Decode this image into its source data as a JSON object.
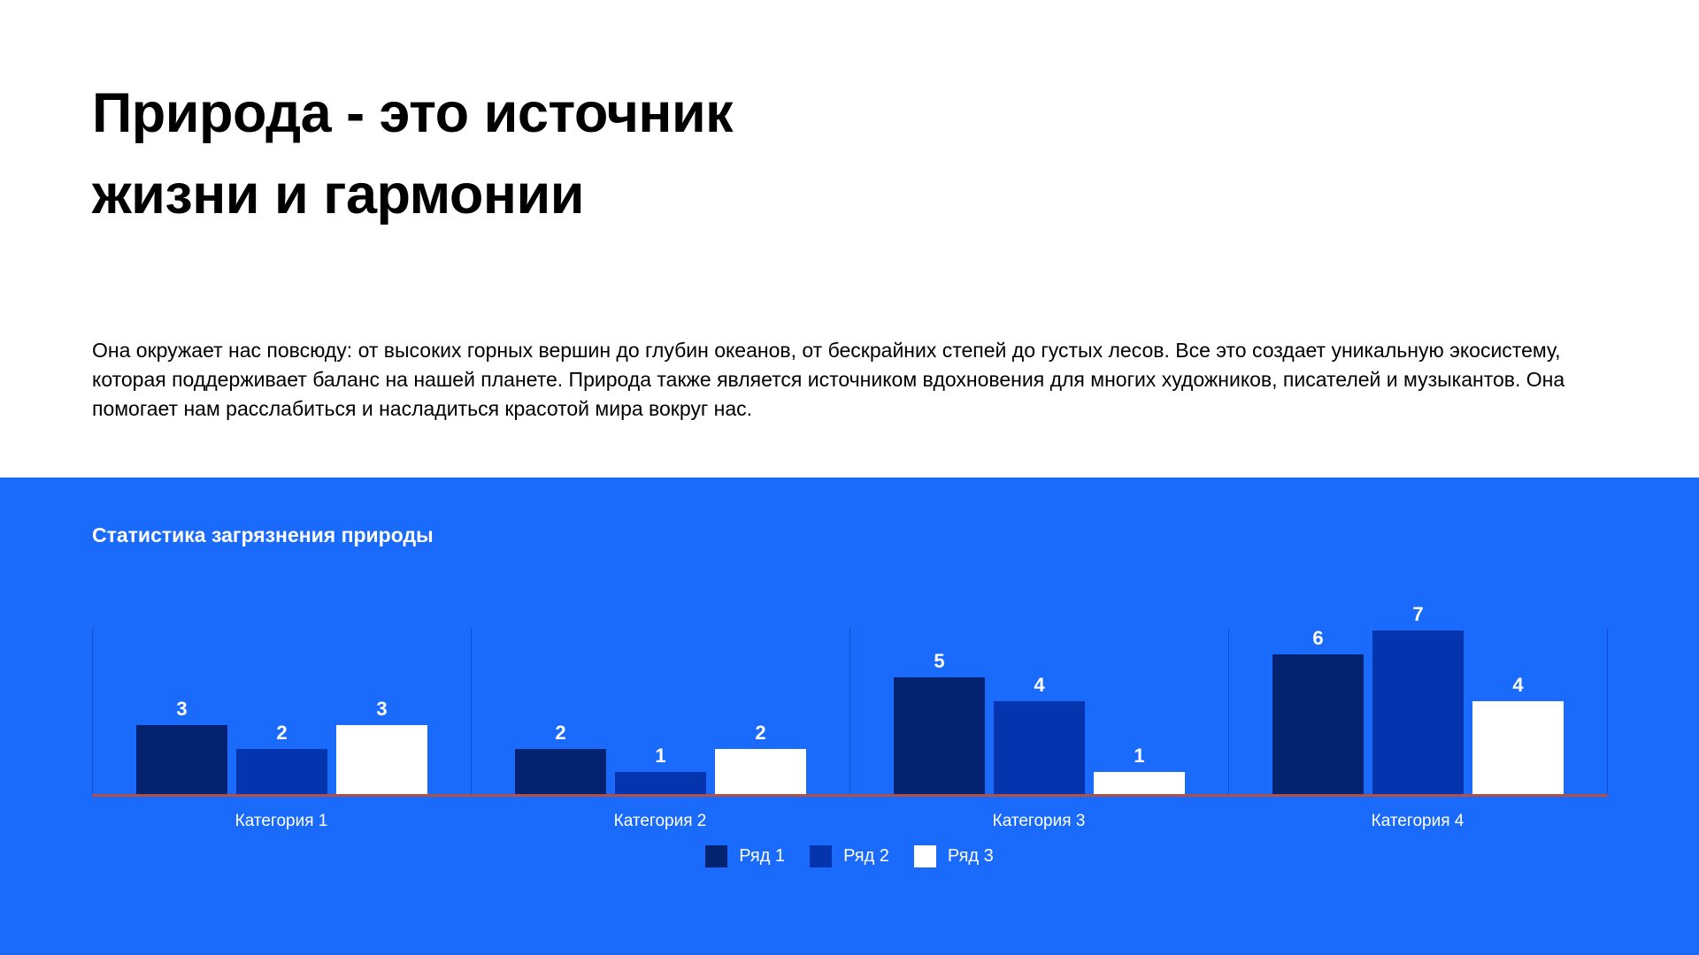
{
  "page": {
    "title_line1": "Природа - это источник",
    "title_line2": "жизни и гармонии",
    "paragraph": "Она окружает нас повсюду: от высоких горных вершин до глубин океанов, от бескрайних степей до густых лесов. Все это создает уникальную экосистему, которая поддерживает баланс на нашей планете. Природа также является источником вдохновения для многих художников, писателей и музыкантов. Она помогает нам расслабиться и насладиться красотой мира вокруг нас."
  },
  "chart_section": {
    "title": "Статистика загрязнения природы",
    "background_color": "#1A6BFB",
    "text_color": "#FFFFFF"
  },
  "chart_data": {
    "type": "bar",
    "title": "Статистика загрязнения природы",
    "categories": [
      "Категория 1",
      "Категория 2",
      "Категория 3",
      "Категория 4"
    ],
    "series": [
      {
        "name": "Ряд 1",
        "color": "#032270",
        "values": [
          3,
          2,
          5,
          6
        ]
      },
      {
        "name": "Ряд 2",
        "color": "#0534AF",
        "values": [
          2,
          1,
          4,
          7
        ]
      },
      {
        "name": "Ряд 3",
        "color": "#FFFFFF",
        "values": [
          3,
          2,
          1,
          4
        ]
      }
    ],
    "ylim": [
      0,
      7
    ],
    "data_labels": true,
    "grid": "vertical-category-separators",
    "gridline_color": "#1560E8",
    "axis_line_color": "#B5503F",
    "legend_position": "bottom"
  }
}
